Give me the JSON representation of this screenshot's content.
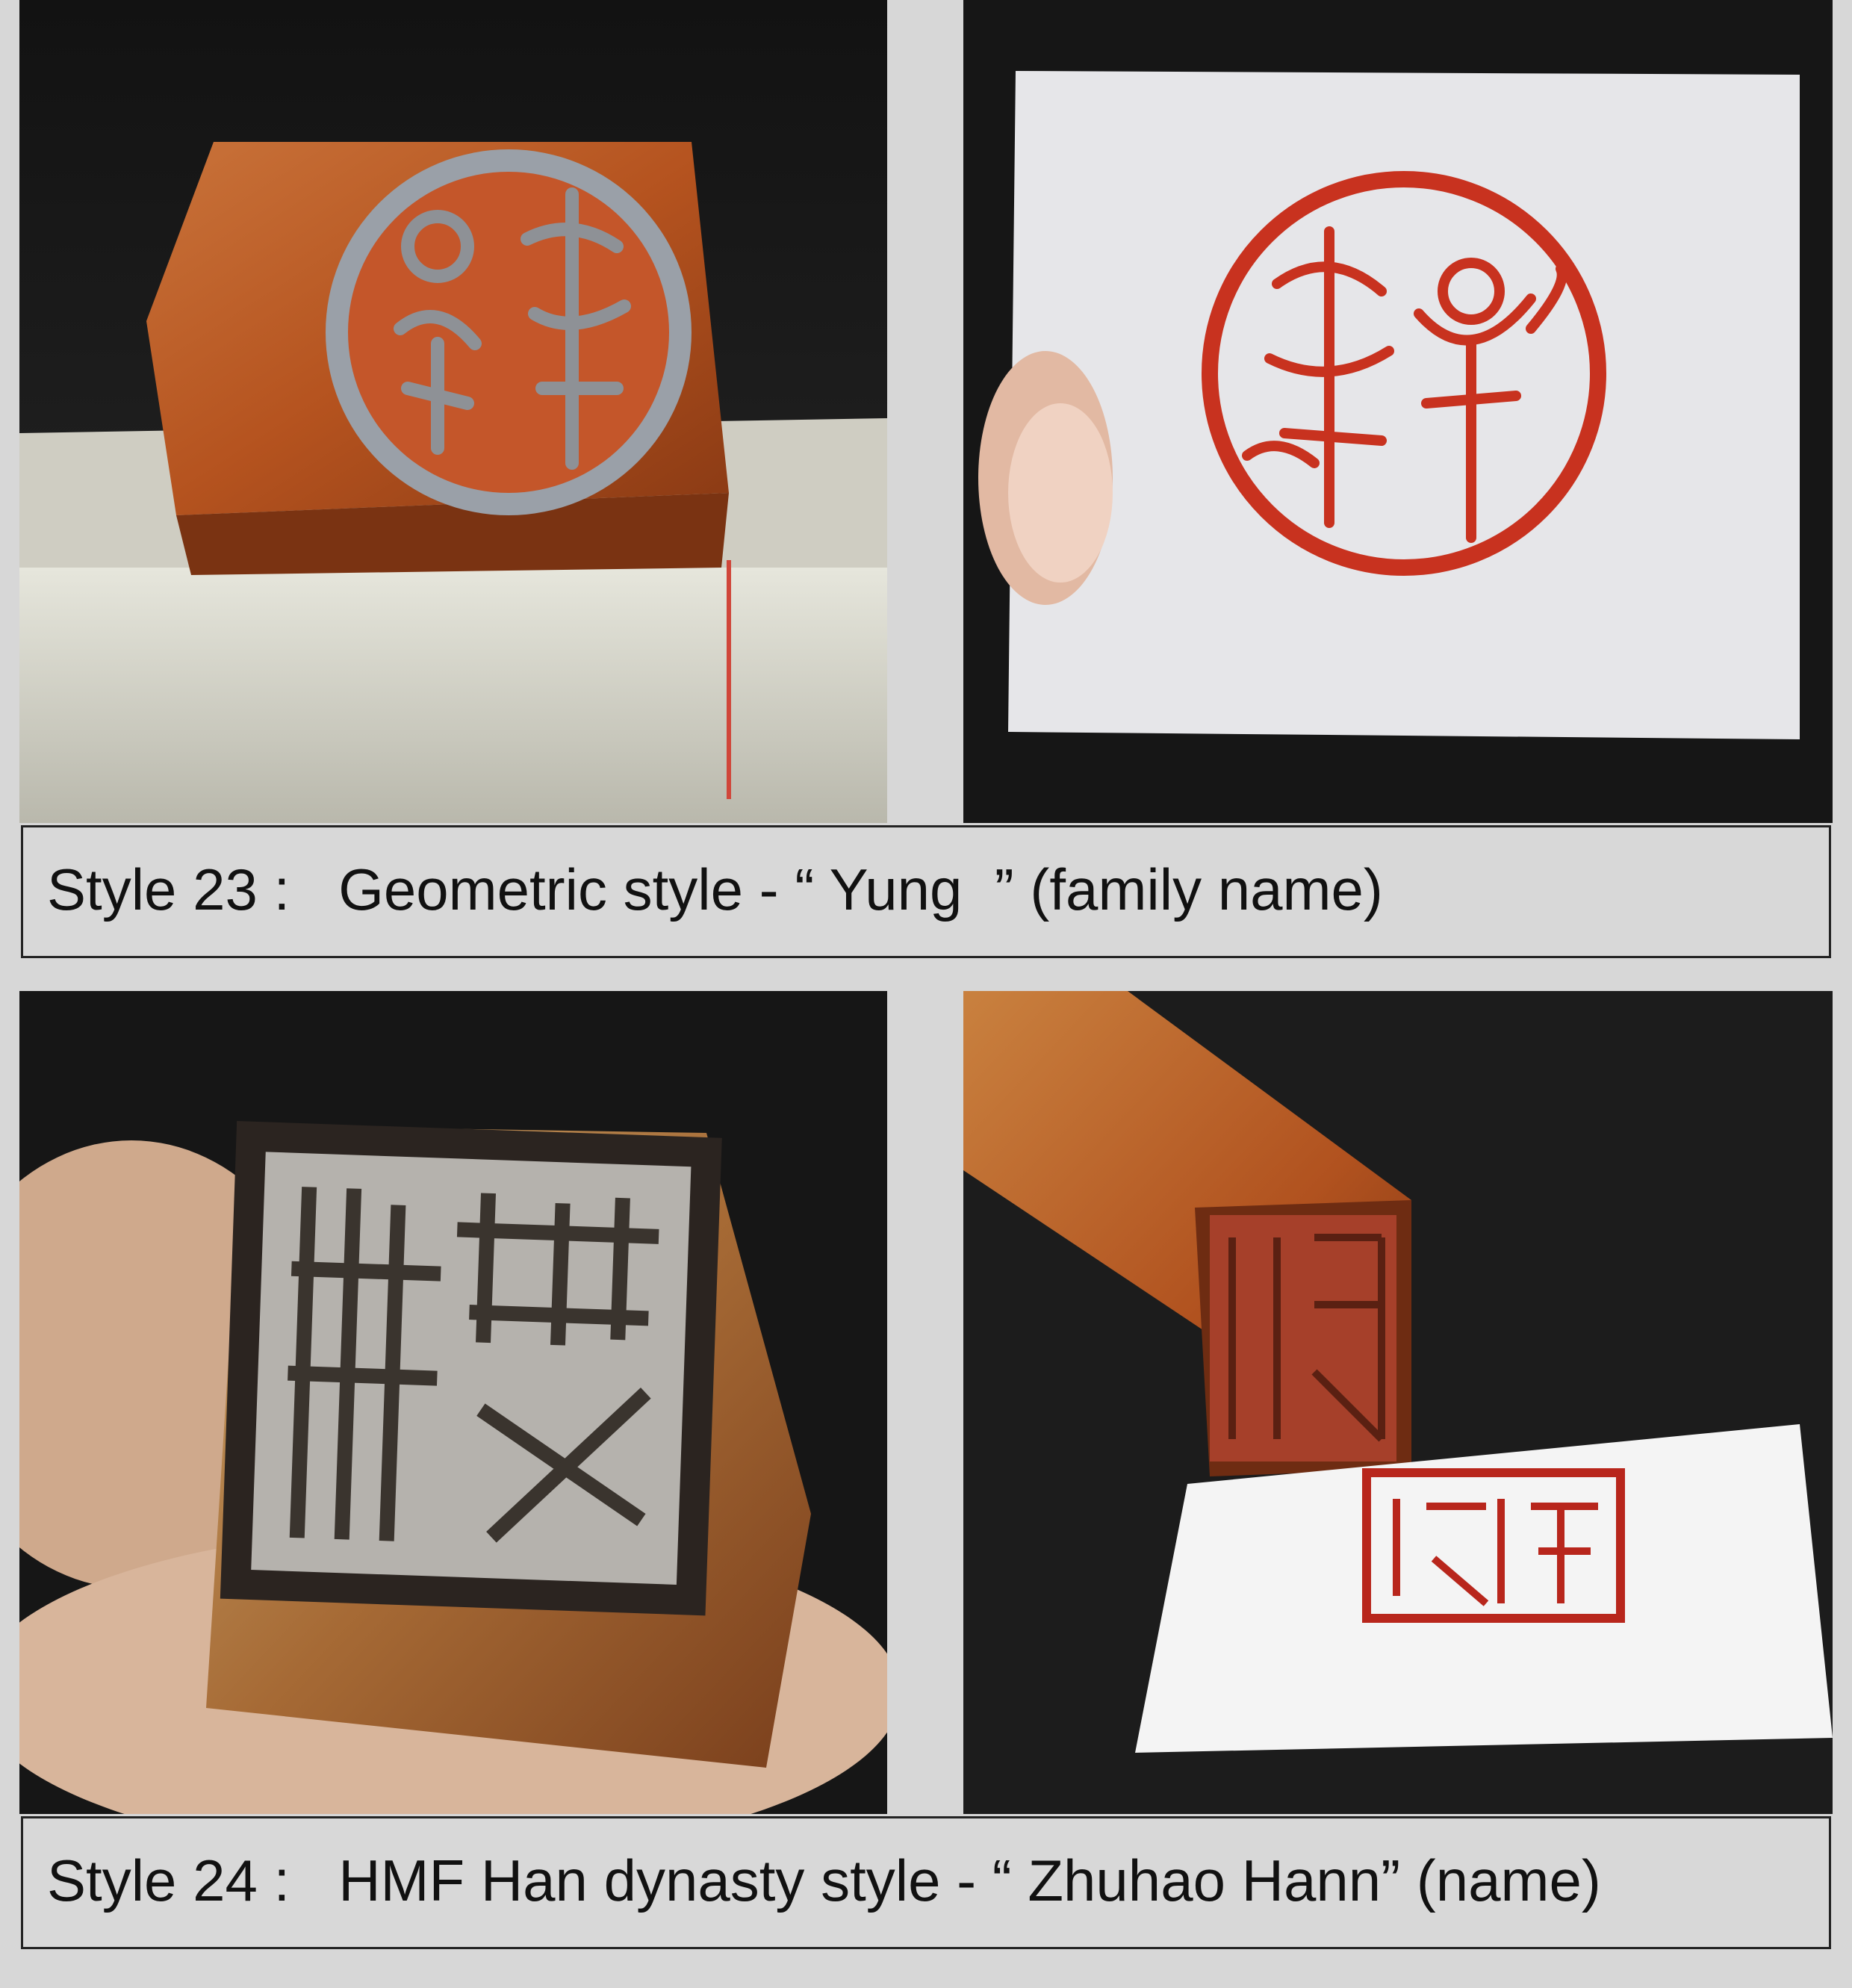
{
  "panels": [
    {
      "label": "Style 23 :",
      "caption": "Geometric style - “ Yung  ” (family name)",
      "photos": [
        "carved-round-seal-stone",
        "round-seal-impression-on-paper"
      ]
    },
    {
      "label": "Style 24 :",
      "caption": "HMF Han dynasty style - “ Zhuhao Hann” (name)",
      "photos": [
        "square-seal-held-in-hand",
        "square-seal-with-impression-on-card"
      ]
    }
  ],
  "colors": {
    "background": "#d7d7d7",
    "photo_dark": "#141414",
    "stone": "#b8562a",
    "ink_red": "#c8321f",
    "paper": "#e8e8ea"
  }
}
